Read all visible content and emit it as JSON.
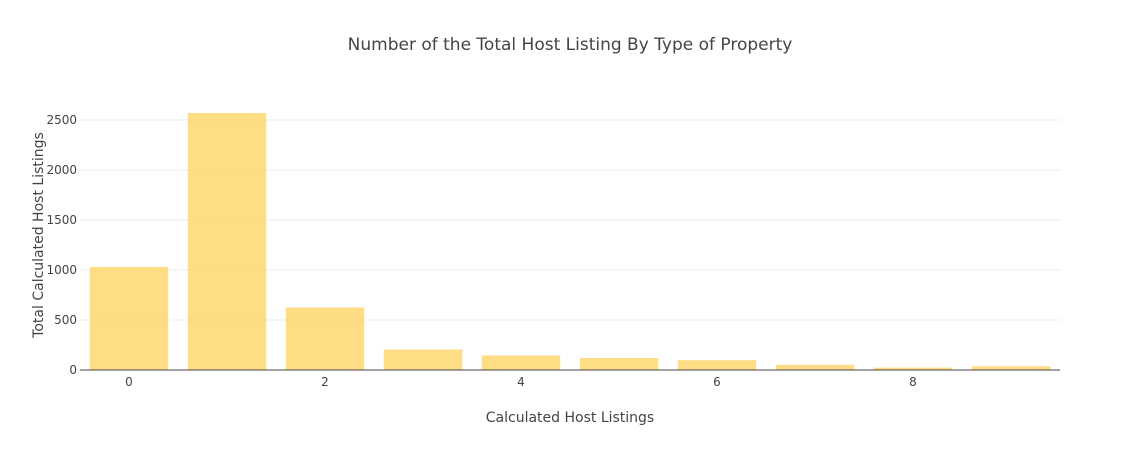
{
  "chart_data": {
    "type": "bar",
    "title": "Number of the Total Host Listing By Type of Property",
    "xlabel": "Calculated Host Listings",
    "ylabel": "Total Calculated Host Listings",
    "x": [
      0,
      1,
      2,
      3,
      4,
      5,
      6,
      7,
      8,
      9
    ],
    "values": [
      1030,
      2570,
      625,
      205,
      145,
      120,
      98,
      52,
      24,
      38
    ],
    "xticks": [
      0,
      2,
      4,
      6,
      8
    ],
    "yticks": [
      0,
      500,
      1000,
      1500,
      2000,
      2500
    ],
    "ylim": [
      0,
      2750
    ],
    "grid": true,
    "bar_color": "#fed978",
    "bar_opacity": 0.9
  }
}
